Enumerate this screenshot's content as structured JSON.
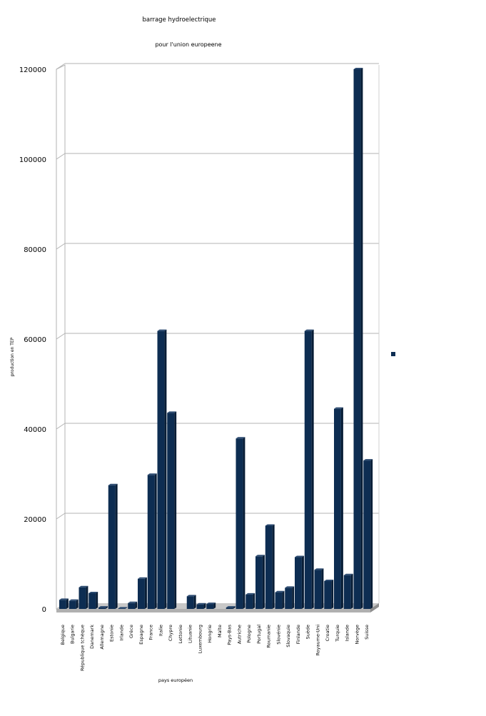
{
  "chart_data": {
    "type": "bar",
    "title": "barrage hydroelectrique",
    "subtitle": "pour l'union europeene",
    "xlabel": "pays européen",
    "ylabel": "production en TEP",
    "ylim": [
      0,
      120000
    ],
    "yticks": [
      0,
      20000,
      40000,
      60000,
      80000,
      100000,
      120000
    ],
    "grid": true,
    "legend": "right",
    "bar_color": "#0d2d52",
    "categories": [
      "Belgique",
      "Bulgarie",
      "République tchèque",
      "Danemark",
      "Allemagne",
      "Estonie",
      "Irlande",
      "Grèce",
      "Espagne",
      "France",
      "Italie",
      "Chypre",
      "Lettonie",
      "Lituanie",
      "Luxembourg",
      "Hongrie",
      "Malte",
      "Pays-Bas",
      "Autriche",
      "Pologne",
      "Portugal",
      "Roumanie",
      "Slovénie",
      "Slovaquie",
      "Finlande",
      "Suède",
      "Royaume-Uni",
      "Croatie",
      "Turquie",
      "Islande",
      "Norvège",
      "Suisse"
    ],
    "values": [
      2000,
      1800,
      4800,
      3500,
      300,
      27500,
      100,
      1300,
      6700,
      29800,
      61800,
      43600,
      0,
      2800,
      1000,
      1100,
      0,
      300,
      37900,
      3200,
      11700,
      18500,
      3700,
      4700,
      11500,
      61800,
      8700,
      6200,
      44500,
      7500,
      120000,
      33000
    ]
  }
}
